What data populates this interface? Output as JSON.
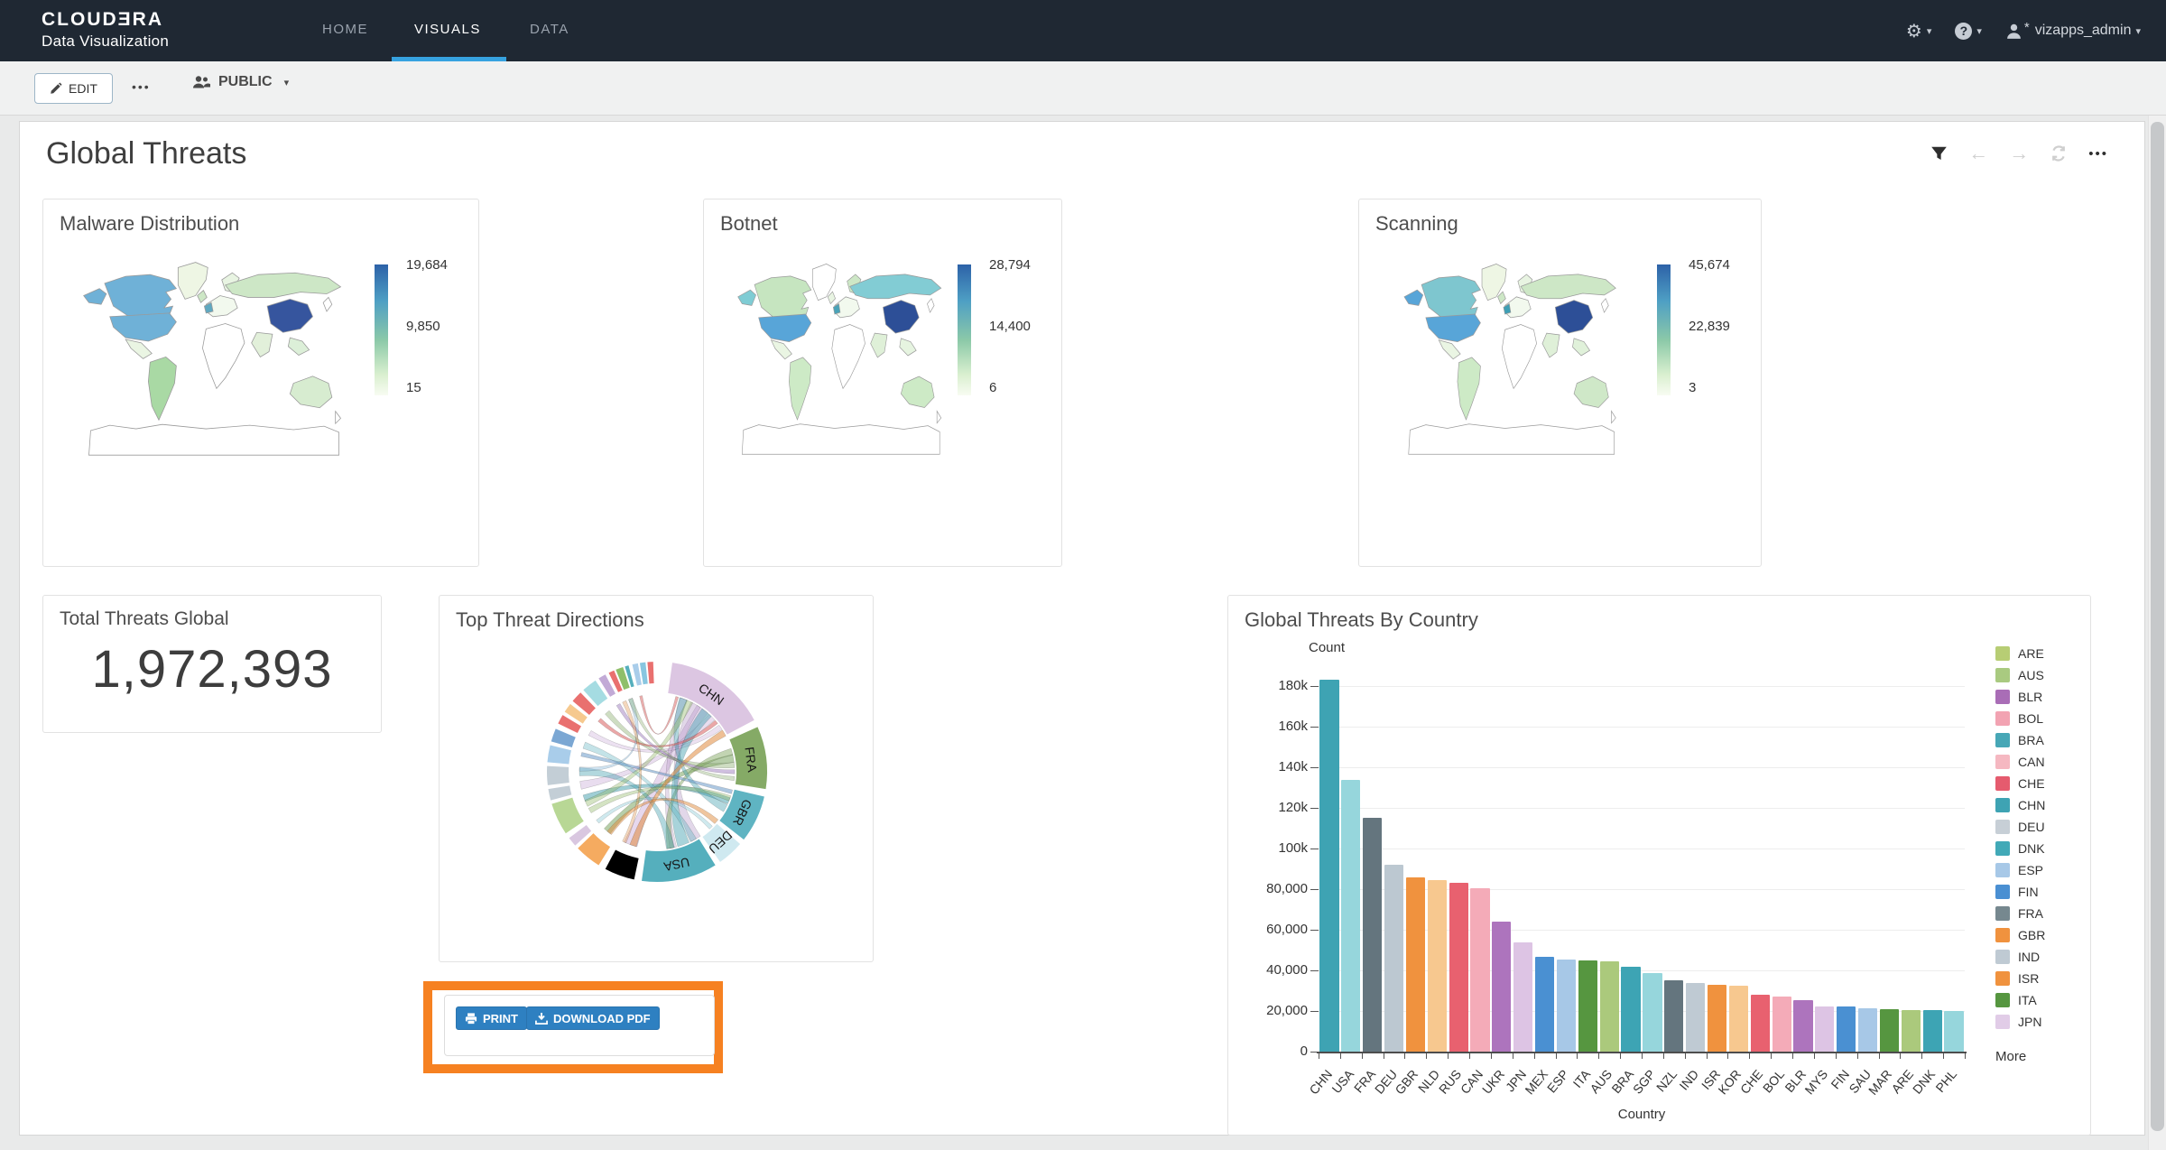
{
  "navbar": {
    "logo_line1": "CLOUDƎRA",
    "logo_line2": "Data Visualization",
    "items": [
      {
        "label": "HOME",
        "active": false
      },
      {
        "label": "VISUALS",
        "active": true
      },
      {
        "label": "DATA",
        "active": false
      }
    ],
    "user_star": "*",
    "username": "vizapps_admin",
    "accent_color": "#36a2e0"
  },
  "toolbar": {
    "edit_label": "EDIT",
    "more_label": "•••",
    "public_label": "PUBLIC"
  },
  "dashboard": {
    "title": "Global Threats"
  },
  "total_threats": {
    "title": "Total Threats Global",
    "value": "1,972,393"
  },
  "print_panel": {
    "print_label": "PRINT",
    "download_label": "DOWNLOAD PDF",
    "highlight_color": "#f68121",
    "button_color": "#2e80c1"
  },
  "chart_data": [
    {
      "type": "choropleth-map",
      "title": "Malware Distribution",
      "legend_labels": {
        "max": "19,684",
        "mid": "9,850",
        "min": "15"
      },
      "legend_values": {
        "max": 19684,
        "mid": 9850,
        "min": 15
      },
      "region_fills": {
        "alaska": "#6fb1d7",
        "canada": "#6fb1d7",
        "usa": "#6fb1d7",
        "mexico": "#eaf5e3",
        "greenland": "#eef6e4",
        "southamerica": "#a9d9a4",
        "uk": "#cde7c6",
        "westeurope": "#5fa8c0",
        "europe": "#f2f9ee",
        "scandinavia": "#e8f4e2",
        "russia": "#cde7c6",
        "china": "#36559e",
        "india": "#e2f0da",
        "seasia": "#dcefd8",
        "australia": "#d7ecd0"
      }
    },
    {
      "type": "choropleth-map",
      "title": "Botnet",
      "legend_labels": {
        "max": "28,794",
        "mid": "14,400",
        "min": "6"
      },
      "legend_values": {
        "max": 28794,
        "mid": 14400,
        "min": 6
      },
      "region_fills": {
        "alaska": "#7fccd4",
        "canada": "#c6e5c0",
        "usa": "#58a5d8",
        "mexico": "#eaf5e3",
        "greenland": "#ffffff",
        "southamerica": "#cdeac6",
        "uk": "#e8f4e2",
        "westeurope": "#4aa3b8",
        "europe": "#f2f9ee",
        "scandinavia": "#cde7c6",
        "russia": "#82ccd4",
        "china": "#2d4f97",
        "india": "#dff0d8",
        "seasia": "#e6f4e0",
        "australia": "#cdeac6"
      }
    },
    {
      "type": "choropleth-map",
      "title": "Scanning",
      "legend_labels": {
        "max": "45,674",
        "mid": "22,839",
        "min": "3"
      },
      "legend_values": {
        "max": 45674,
        "mid": 22839,
        "min": 3
      },
      "region_fills": {
        "alaska": "#58a5d8",
        "canada": "#7ec6cf",
        "usa": "#58a5d8",
        "mexico": "#eaf5e3",
        "greenland": "#eef6e4",
        "southamerica": "#cdeac6",
        "uk": "#cde7c6",
        "westeurope": "#3e9fb5",
        "europe": "#f2f9ee",
        "scandinavia": "#e8f4e2",
        "russia": "#cde7c6",
        "china": "#2d4f97",
        "india": "#dff0d8",
        "seasia": "#e0f1da",
        "australia": "#cfe8c8"
      }
    },
    {
      "type": "chord",
      "title": "Top Threat Directions",
      "labeled_countries": [
        "CHN",
        "FRA",
        "GBR",
        "DEU",
        "USA"
      ],
      "arcs": [
        {
          "label": "CHN",
          "start": 8,
          "end": 62,
          "color": "#dcc6e2"
        },
        {
          "label": "FRA",
          "start": 66,
          "end": 99,
          "color": "#85aa66"
        },
        {
          "label": "GBR",
          "start": 103,
          "end": 128,
          "color": "#5fb4c2"
        },
        {
          "label": "DEU",
          "start": 131,
          "end": 145,
          "color": "#cfe9f0"
        },
        {
          "label": "USA",
          "start": 148,
          "end": 188,
          "color": "#55afbd"
        },
        {
          "start": 192,
          "end": 208,
          "color": "#f3a citrus"
        },
        {
          "start": 212,
          "end": 226,
          "color": "#f5ab60"
        },
        {
          "start": 228,
          "end": 233,
          "color": "#d9c7e0"
        },
        {
          "start": 236,
          "end": 253,
          "color": "#b8d795"
        },
        {
          "start": 255,
          "end": 261,
          "color": "#c3ced6"
        },
        {
          "start": 263,
          "end": 273,
          "color": "#c3ced6"
        },
        {
          "start": 275,
          "end": 284,
          "color": "#a9cdea"
        },
        {
          "start": 286,
          "end": 293,
          "color": "#7ba7d3"
        },
        {
          "start": 296,
          "end": 301,
          "color": "#e9706f"
        },
        {
          "start": 303,
          "end": 308,
          "color": "#f6c98e"
        },
        {
          "start": 310,
          "end": 316,
          "color": "#e9706f"
        },
        {
          "start": 318,
          "end": 326,
          "color": "#a5dce2"
        },
        {
          "start": 328,
          "end": 332,
          "color": "#c2aad6"
        },
        {
          "start": 334,
          "end": 337,
          "color": "#e9706f"
        },
        {
          "start": 338,
          "end": 342,
          "color": "#8fbf6a"
        },
        {
          "start": 343,
          "end": 345,
          "color": "#55afbd"
        },
        {
          "start": 347,
          "end": 350,
          "color": "#a9cdea"
        },
        {
          "start": 351,
          "end": 354,
          "color": "#88c6e0"
        },
        {
          "start": 355,
          "end": 358,
          "color": "#e9706f"
        }
      ]
    },
    {
      "type": "bar",
      "title": "Global Threats By Country",
      "xlabel": "Country",
      "ylabel": "Count",
      "ylim": [
        0,
        186000
      ],
      "grid": true,
      "legend_position": "right",
      "categories": [
        "CHN",
        "USA",
        "FRA",
        "DEU",
        "GBR",
        "NLD",
        "RUS",
        "CAN",
        "UKR",
        "JPN",
        "MEX",
        "ESP",
        "ITA",
        "AUS",
        "BRA",
        "SGP",
        "NZL",
        "IND",
        "ISR",
        "KOR",
        "CHE",
        "BOL",
        "BLR",
        "MYS",
        "FIN",
        "SAU",
        "MAR",
        "ARE",
        "DNK",
        "PHL"
      ],
      "values": [
        183000,
        134000,
        115000,
        92000,
        86000,
        84500,
        83000,
        80500,
        64000,
        54000,
        46500,
        45500,
        45000,
        44600,
        42000,
        38700,
        35000,
        33700,
        33000,
        32500,
        28000,
        27000,
        25300,
        22300,
        22300,
        21200,
        20700,
        20600,
        20500,
        19800
      ],
      "bar_colors": [
        "#3ea3b3",
        "#96d6dc",
        "#64757e",
        "#bcc8d1",
        "#f0923e",
        "#f7c88f",
        "#e8616f",
        "#f4abb8",
        "#ad74bd",
        "#ddc4e4",
        "#4a90d2",
        "#a7c8e7",
        "#569640",
        "#abc97c",
        "#3da4b4",
        "#96d6dc",
        "#64757e",
        "#bfcad3",
        "#f0923e",
        "#f7c88f",
        "#e8616f",
        "#f4abb8",
        "#ad74bd",
        "#ddc4e4",
        "#4a90d2",
        "#a7c8e7",
        "#569640",
        "#abc97c",
        "#3da4b4",
        "#96d6dc"
      ],
      "yticks": [
        {
          "v": 0,
          "label": "0"
        },
        {
          "v": 20000,
          "label": "20,000"
        },
        {
          "v": 40000,
          "label": "40,000"
        },
        {
          "v": 60000,
          "label": "60,000"
        },
        {
          "v": 80000,
          "label": "80,000"
        },
        {
          "v": 100000,
          "label": "100k"
        },
        {
          "v": 120000,
          "label": "120k"
        },
        {
          "v": 140000,
          "label": "140k"
        },
        {
          "v": 160000,
          "label": "160k"
        },
        {
          "v": 180000,
          "label": "180k"
        }
      ],
      "legend": [
        {
          "label": "ARE",
          "color": "#b7cd74"
        },
        {
          "label": "AUS",
          "color": "#a9ca80"
        },
        {
          "label": "BLR",
          "color": "#a96db6"
        },
        {
          "label": "BOL",
          "color": "#f2a3b2"
        },
        {
          "label": "BRA",
          "color": "#47a7b6"
        },
        {
          "label": "CAN",
          "color": "#f5b8c1"
        },
        {
          "label": "CHE",
          "color": "#e55b6e"
        },
        {
          "label": "CHN",
          "color": "#3ea3b3"
        },
        {
          "label": "DEU",
          "color": "#c7cfd6"
        },
        {
          "label": "DNK",
          "color": "#41a9b7"
        },
        {
          "label": "ESP",
          "color": "#a7c8e7"
        },
        {
          "label": "FIN",
          "color": "#4a8fd2"
        },
        {
          "label": "FRA",
          "color": "#76888f"
        },
        {
          "label": "GBR",
          "color": "#f0923e"
        },
        {
          "label": "IND",
          "color": "#bfcad3"
        },
        {
          "label": "ISR",
          "color": "#f0923e"
        },
        {
          "label": "ITA",
          "color": "#569640"
        },
        {
          "label": "JPN",
          "color": "#e1cce7"
        }
      ],
      "legend_more": "More"
    }
  ]
}
